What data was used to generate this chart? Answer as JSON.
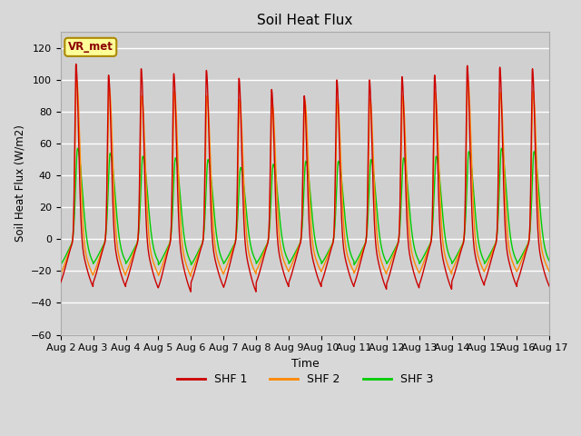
{
  "title": "Soil Heat Flux",
  "xlabel": "Time",
  "ylabel": "Soil Heat Flux (W/m2)",
  "ylim": [
    -60,
    130
  ],
  "yticks": [
    -60,
    -40,
    -20,
    0,
    20,
    40,
    60,
    80,
    100,
    120
  ],
  "start_day": 2,
  "end_day": 17,
  "n_days": 15,
  "points_per_day": 144,
  "colors": {
    "SHF 1": "#cc0000",
    "SHF 2": "#ff8800",
    "SHF 3": "#00cc00"
  },
  "line_width": 1.0,
  "bg_color": "#d8d8d8",
  "plot_bg": "#d0d0d0",
  "legend_label": "VR_met",
  "legend_box_color": "#ffff99",
  "legend_box_edge": "#aa8800",
  "grid_color": "#ffffff",
  "shf1_day_peak": [
    110,
    103,
    107,
    104,
    106,
    101,
    94,
    90,
    100,
    100,
    102,
    103,
    109,
    108,
    107
  ],
  "shf1_night_min": [
    -36,
    -36,
    -37,
    -40,
    -36,
    -40,
    -36,
    -36,
    -36,
    -38,
    -37,
    -38,
    -35,
    -36,
    -36
  ],
  "shf2_day_peak": [
    100,
    95,
    90,
    93,
    90,
    88,
    85,
    87,
    88,
    88,
    90,
    92,
    100,
    92,
    93
  ],
  "shf2_night_min": [
    -30,
    -30,
    -29,
    -31,
    -29,
    -29,
    -27,
    -27,
    -27,
    -29,
    -28,
    -29,
    -27,
    -27,
    -27
  ],
  "shf3_day_peak": [
    57,
    54,
    52,
    51,
    50,
    45,
    47,
    49,
    49,
    50,
    51,
    52,
    55,
    57,
    55
  ],
  "shf3_night_min": [
    -22,
    -21,
    -21,
    -22,
    -22,
    -21,
    -21,
    -21,
    -21,
    -22,
    -21,
    -21,
    -21,
    -21,
    -21
  ]
}
